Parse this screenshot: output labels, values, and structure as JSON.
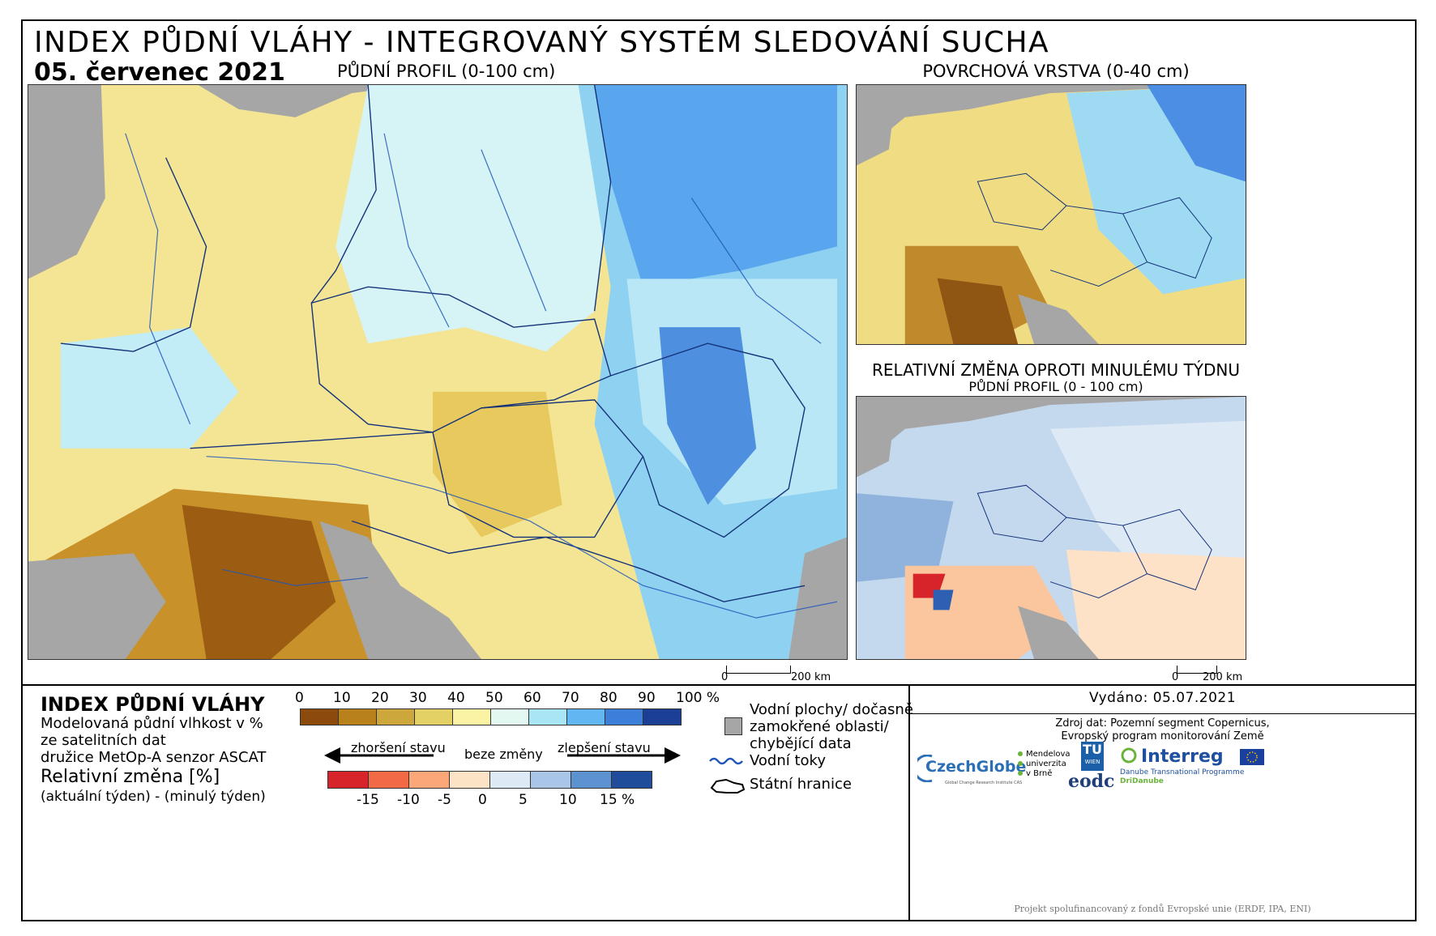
{
  "header": {
    "title": "INDEX PŮDNÍ VLÁHY - INTEGROVANÝ SYSTÉM SLEDOVÁNÍ SUCHA",
    "date": "05. červenec 2021"
  },
  "maps": {
    "main_label": "PŮDNÍ PROFIL (0-100 cm)",
    "surface_label": "POVRCHOVÁ VRSTVA (0-40 cm)",
    "change_label": "RELATIVNÍ ZMĚNA OPROTI MINULÉMU TÝDNU",
    "change_sublabel": "PŮDNÍ PROFIL (0 - 100 cm)"
  },
  "scalebars": {
    "main": {
      "start": "0",
      "end": "200 km"
    },
    "small": {
      "start": "0",
      "end": "200 km"
    }
  },
  "legend": {
    "title": "INDEX PŮDNÍ VLÁHY",
    "desc_lines": [
      "Modelovaná půdní vlhkost v %",
      "ze satelitních dat",
      "družice MetOp-A senzor ASCAT"
    ],
    "change_title": "Relativní změna [%]",
    "change_desc": "(aktuální týden) - (minulý týden)",
    "index_ticks": [
      "0",
      "10",
      "20",
      "30",
      "40",
      "50",
      "60",
      "70",
      "80",
      "90",
      "100 %"
    ],
    "index_colors": [
      "#8c4a0c",
      "#b9811b",
      "#cda63c",
      "#e3d166",
      "#fbf3a4",
      "#e3f8f0",
      "#a8e6f5",
      "#62b7f2",
      "#3b7fdb",
      "#1c3f96"
    ],
    "worse_label": "zhoršení stavu",
    "nochange_label": "beze změny",
    "better_label": "zlepšení stavu",
    "change_ticks": [
      "-15",
      "-10",
      "-5",
      "0",
      "5",
      "10",
      "15 %"
    ],
    "change_colors": [
      "#d7242a",
      "#f26a45",
      "#fca77a",
      "#fde3c6",
      "#dde9f5",
      "#a9c6e8",
      "#5d92d0",
      "#1f4d9b"
    ],
    "water_label_lines": [
      "Vodní plochy/ dočasně",
      "zamokřené oblasti/",
      "chybějící data"
    ],
    "rivers_label": "Vodní toky",
    "borders_label": "Státní hranice"
  },
  "footer": {
    "issued": "Vydáno: 05.07.2021",
    "source_lines": [
      "Zdroj dat: Pozemní segment Copernicus,",
      "Evropský program monitorování Země"
    ],
    "logos": {
      "czechglobe": "CzechGlobe",
      "czechglobe_sub": "Global Change Research Institute CAS",
      "mendel": [
        "Mendelova",
        "univerzita",
        "v Brně"
      ],
      "tu": "TU",
      "tu_sub": "WIEN",
      "eodc": "eodc",
      "interreg": "Interreg",
      "interreg_sub": "Danube Transnational Programme",
      "dridanube": "DriDanube"
    },
    "project_note": "Projekt spolufinancovaný z fondů Evropské unie (ERDF, IPA, ENI)"
  }
}
